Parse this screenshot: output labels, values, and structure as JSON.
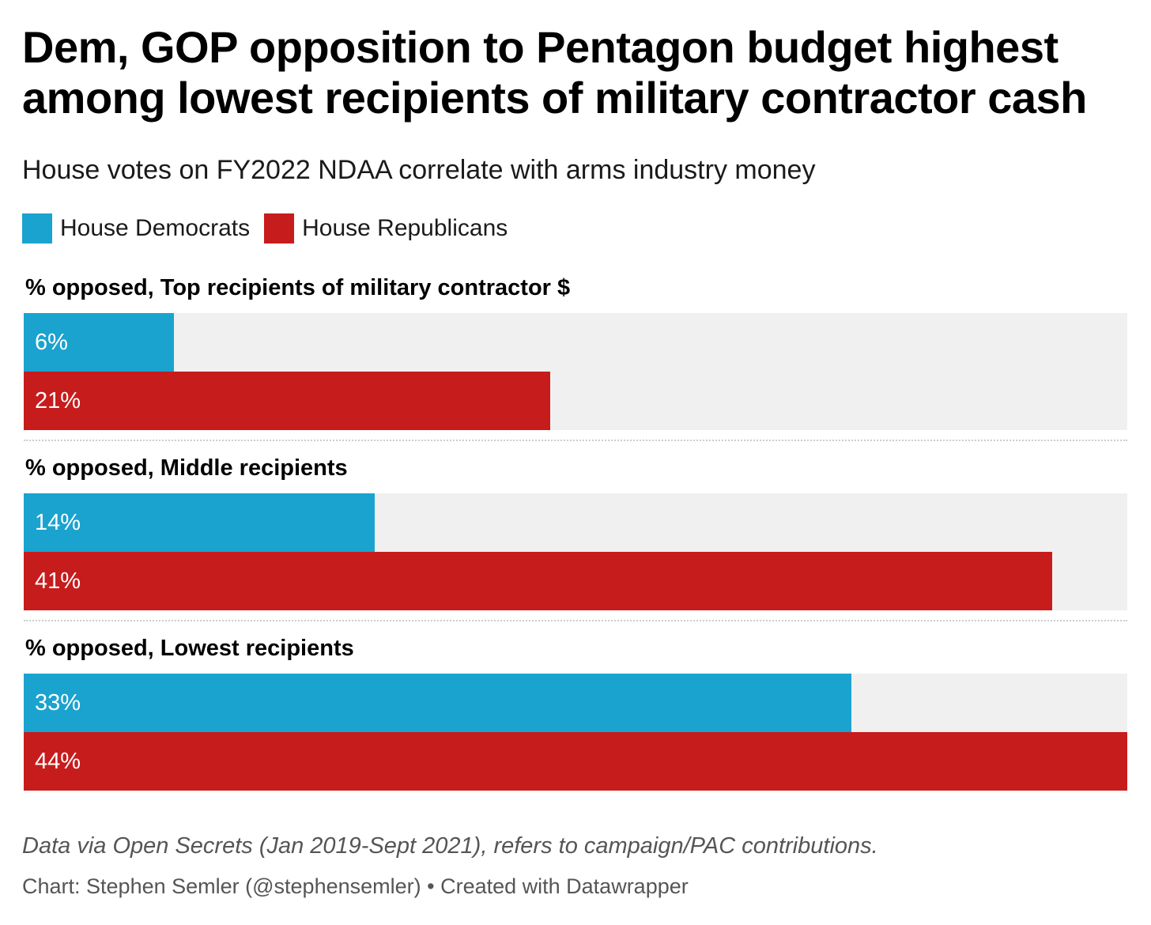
{
  "chart_data": {
    "type": "bar",
    "title": "Dem, GOP opposition to Pentagon budget highest among lowest recipients of military contractor cash",
    "subtitle": "House votes on FY2022 NDAA correlate with arms industry money",
    "categories": [
      "% opposed, Top recipients of military contractor $",
      "% opposed, Middle recipients",
      "% opposed, Lowest recipients"
    ],
    "series": [
      {
        "name": "House Democrats",
        "values": [
          6,
          14,
          33
        ],
        "labels": [
          "6%",
          "14%",
          "33%"
        ],
        "color": "#1aa3cf"
      },
      {
        "name": "House Republicans",
        "values": [
          21,
          41,
          44
        ],
        "labels": [
          "21%",
          "41%",
          "44%"
        ],
        "color": "#c71c1c"
      }
    ],
    "ylim": [
      0,
      44
    ],
    "legend": "top-left",
    "grid": false
  },
  "footer": {
    "note": "Data via Open Secrets (Jan 2019-Sept 2021), refers to campaign/PAC contributions.",
    "credit": "Chart: Stephen Semler (@stephensemler) • Created with Datawrapper"
  }
}
